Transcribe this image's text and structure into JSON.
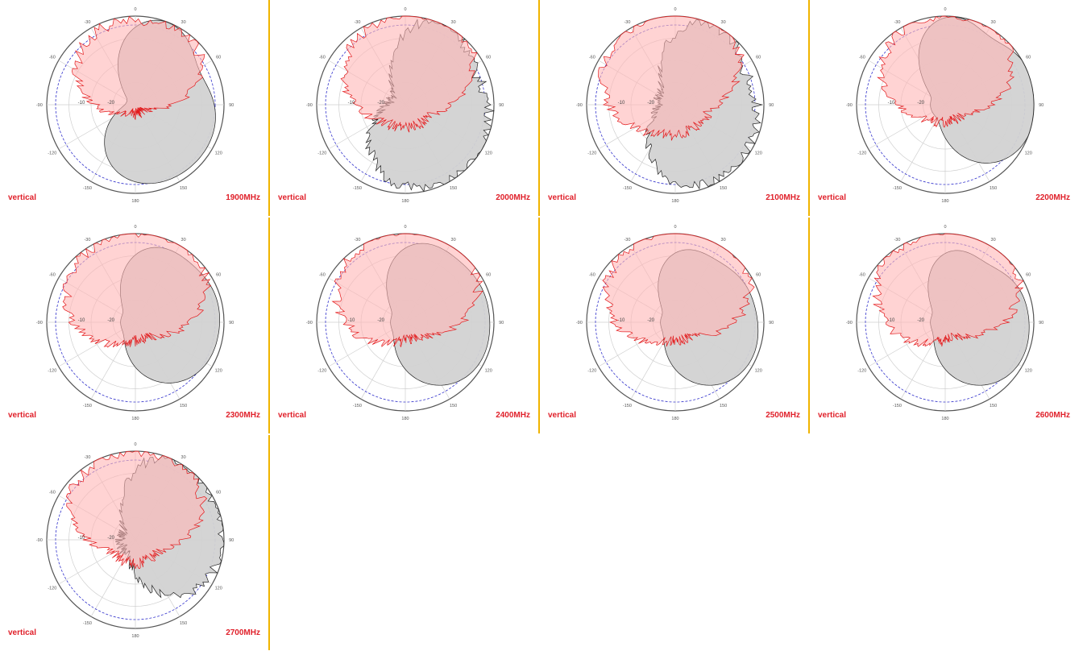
{
  "colors": {
    "horizontal_fill": "#d2d2d2",
    "horizontal_stroke": "#222222",
    "vertical_fill": "#ffb6b6",
    "vertical_stroke": "#e31a1c",
    "reference_circle": "#3333cc",
    "divider": "#f0b400",
    "label": "#e0202a"
  },
  "angle_labels": [
    "0",
    "30",
    "60",
    "90",
    "120",
    "150",
    "180",
    "-150",
    "-120",
    "-90",
    "-60",
    "-30"
  ],
  "radial_labels": [
    "-10",
    "-20"
  ],
  "chart_data": [
    {
      "type": "polar",
      "polarization_label": "vertical",
      "frequency_label": "1900MHz",
      "rlim_db": [
        -30,
        0
      ],
      "series": [
        {
          "name": "horizontal",
          "lobes": [
            {
              "center": 20,
              "width": 22,
              "db": -1
            },
            {
              "center": 110,
              "width": 40,
              "db": -3
            },
            {
              "center": 175,
              "width": 30,
              "db": -7
            }
          ],
          "floor_db": -27,
          "spiky": false
        },
        {
          "name": "vertical",
          "lobes": [
            {
              "center": -15,
              "width": 38,
              "db": -2
            },
            {
              "center": 45,
              "width": 22,
              "db": -5
            }
          ],
          "floor_db": -27,
          "spiky": true
        }
      ]
    },
    {
      "type": "polar",
      "polarization_label": "vertical",
      "frequency_label": "2000MHz",
      "rlim_db": [
        -30,
        0
      ],
      "series": [
        {
          "name": "horizontal",
          "lobes": [
            {
              "center": 25,
              "width": 22,
              "db": -1
            },
            {
              "center": 110,
              "width": 40,
              "db": -2
            },
            {
              "center": 170,
              "width": 35,
              "db": -5
            }
          ],
          "floor_db": -25,
          "spiky": true
        },
        {
          "name": "vertical",
          "lobes": [
            {
              "center": -15,
              "width": 40,
              "db": -2
            },
            {
              "center": 40,
              "width": 25,
              "db": -4
            }
          ],
          "floor_db": -22,
          "spiky": true
        }
      ]
    },
    {
      "type": "polar",
      "polarization_label": "vertical",
      "frequency_label": "2100MHz",
      "rlim_db": [
        -30,
        0
      ],
      "series": [
        {
          "name": "horizontal",
          "lobes": [
            {
              "center": 25,
              "width": 22,
              "db": -2
            },
            {
              "center": 105,
              "width": 40,
              "db": -3
            },
            {
              "center": 165,
              "width": 30,
              "db": -6
            }
          ],
          "floor_db": -24,
          "spiky": true
        },
        {
          "name": "vertical",
          "lobes": [
            {
              "center": -25,
              "width": 45,
              "db": -1
            },
            {
              "center": 30,
              "width": 25,
              "db": -4
            }
          ],
          "floor_db": -20,
          "spiky": true
        }
      ]
    },
    {
      "type": "polar",
      "polarization_label": "vertical",
      "frequency_label": "2200MHz",
      "rlim_db": [
        -30,
        0
      ],
      "series": [
        {
          "name": "horizontal",
          "lobes": [
            {
              "center": 5,
              "width": 20,
              "db": -1
            },
            {
              "center": 60,
              "width": 22,
              "db": -3
            },
            {
              "center": 110,
              "width": 30,
              "db": -1
            }
          ],
          "floor_db": -25,
          "spiky": false
        },
        {
          "name": "vertical",
          "lobes": [
            {
              "center": -15,
              "width": 40,
              "db": -1
            },
            {
              "center": 40,
              "width": 25,
              "db": -4
            }
          ],
          "floor_db": -24,
          "spiky": true
        }
      ]
    },
    {
      "type": "polar",
      "polarization_label": "vertical",
      "frequency_label": "2300MHz",
      "rlim_db": [
        -30,
        0
      ],
      "series": [
        {
          "name": "horizontal",
          "lobes": [
            {
              "center": 20,
              "width": 22,
              "db": -5
            },
            {
              "center": 65,
              "width": 22,
              "db": -7
            },
            {
              "center": 115,
              "width": 35,
              "db": -3
            }
          ],
          "floor_db": -25,
          "spiky": false
        },
        {
          "name": "vertical",
          "lobes": [
            {
              "center": -25,
              "width": 45,
              "db": -2
            },
            {
              "center": 40,
              "width": 30,
              "db": -3
            }
          ],
          "floor_db": -24,
          "spiky": true
        }
      ]
    },
    {
      "type": "polar",
      "polarization_label": "vertical",
      "frequency_label": "2400MHz",
      "rlim_db": [
        -30,
        0
      ],
      "series": [
        {
          "name": "horizontal",
          "lobes": [
            {
              "center": 15,
              "width": 22,
              "db": -4
            },
            {
              "center": 60,
              "width": 22,
              "db": -7
            },
            {
              "center": 115,
              "width": 35,
              "db": -2
            }
          ],
          "floor_db": -25,
          "spiky": false
        },
        {
          "name": "vertical",
          "lobes": [
            {
              "center": -20,
              "width": 45,
              "db": -1
            },
            {
              "center": 40,
              "width": 30,
              "db": -3
            }
          ],
          "floor_db": -24,
          "spiky": true
        }
      ]
    },
    {
      "type": "polar",
      "polarization_label": "vertical",
      "frequency_label": "2500MHz",
      "rlim_db": [
        -30,
        0
      ],
      "series": [
        {
          "name": "horizontal",
          "lobes": [
            {
              "center": 10,
              "width": 20,
              "db": -7
            },
            {
              "center": 55,
              "width": 22,
              "db": -8
            },
            {
              "center": 115,
              "width": 35,
              "db": -2
            }
          ],
          "floor_db": -25,
          "spiky": false
        },
        {
          "name": "vertical",
          "lobes": [
            {
              "center": -20,
              "width": 45,
              "db": -1
            },
            {
              "center": 40,
              "width": 30,
              "db": -2
            }
          ],
          "floor_db": -24,
          "spiky": true
        }
      ]
    },
    {
      "type": "polar",
      "polarization_label": "vertical",
      "frequency_label": "2600MHz",
      "rlim_db": [
        -30,
        0
      ],
      "series": [
        {
          "name": "horizontal",
          "lobes": [
            {
              "center": 10,
              "width": 20,
              "db": -7
            },
            {
              "center": 60,
              "width": 22,
              "db": -8
            },
            {
              "center": 115,
              "width": 35,
              "db": -2
            }
          ],
          "floor_db": -25,
          "spiky": false
        },
        {
          "name": "vertical",
          "lobes": [
            {
              "center": -20,
              "width": 45,
              "db": -1
            },
            {
              "center": 40,
              "width": 30,
              "db": -2
            }
          ],
          "floor_db": -24,
          "spiky": true
        }
      ]
    },
    {
      "type": "polar",
      "polarization_label": "vertical",
      "frequency_label": "2700MHz",
      "rlim_db": [
        -30,
        0
      ],
      "series": [
        {
          "name": "horizontal",
          "lobes": [
            {
              "center": 25,
              "width": 22,
              "db": -2
            },
            {
              "center": 70,
              "width": 25,
              "db": -4
            },
            {
              "center": 115,
              "width": 30,
              "db": -4
            }
          ],
          "floor_db": -25,
          "spiky": true
        },
        {
          "name": "vertical",
          "lobes": [
            {
              "center": -5,
              "width": 30,
              "db": -2
            },
            {
              "center": -50,
              "width": 25,
              "db": -8
            },
            {
              "center": 45,
              "width": 25,
              "db": -5
            }
          ],
          "floor_db": -22,
          "spiky": true
        }
      ]
    }
  ]
}
